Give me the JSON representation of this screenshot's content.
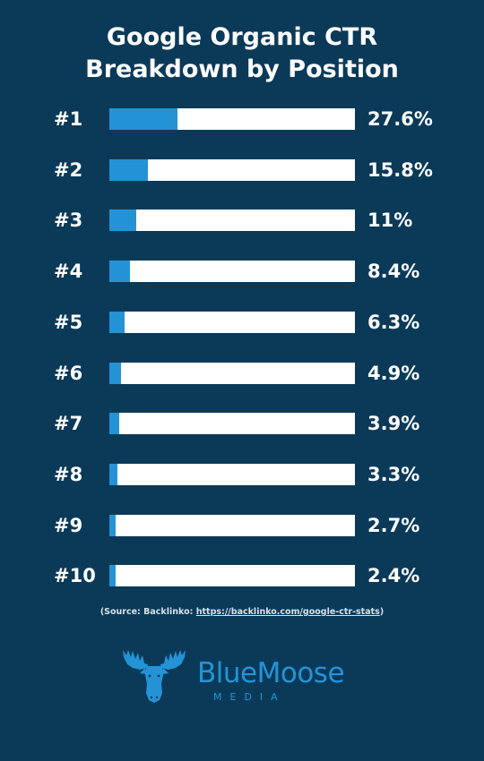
{
  "title_line1": "Google Organic CTR",
  "title_line2": "Breakdown by Position",
  "chart_data": {
    "type": "bar",
    "orientation": "horizontal",
    "title": "Google Organic CTR Breakdown by Position",
    "categories": [
      "#1",
      "#2",
      "#3",
      "#4",
      "#5",
      "#6",
      "#7",
      "#8",
      "#9",
      "#10"
    ],
    "values": [
      27.6,
      15.8,
      11,
      8.4,
      6.3,
      4.9,
      3.9,
      3.3,
      2.7,
      2.4
    ],
    "value_labels": [
      "27.6%",
      "15.8%",
      "11%",
      "8.4%",
      "6.3%",
      "4.9%",
      "3.9%",
      "3.3%",
      "2.7%",
      "2.4%"
    ],
    "xlim": [
      0,
      100
    ],
    "grid": false,
    "legend": "none",
    "colors": {
      "fill": "#2493d6",
      "track": "#ffffff",
      "background": "#0b3a59"
    }
  },
  "source": {
    "prefix": "(Source: Backlinko: ",
    "link": "https://backlinko.com/google-ctr-stats",
    "suffix": ")"
  },
  "logo": {
    "icon": "moose-head-icon",
    "name_part1": "Blue",
    "name_part2": "Moose",
    "subtitle": "MEDIA",
    "color": "#2493d6"
  }
}
